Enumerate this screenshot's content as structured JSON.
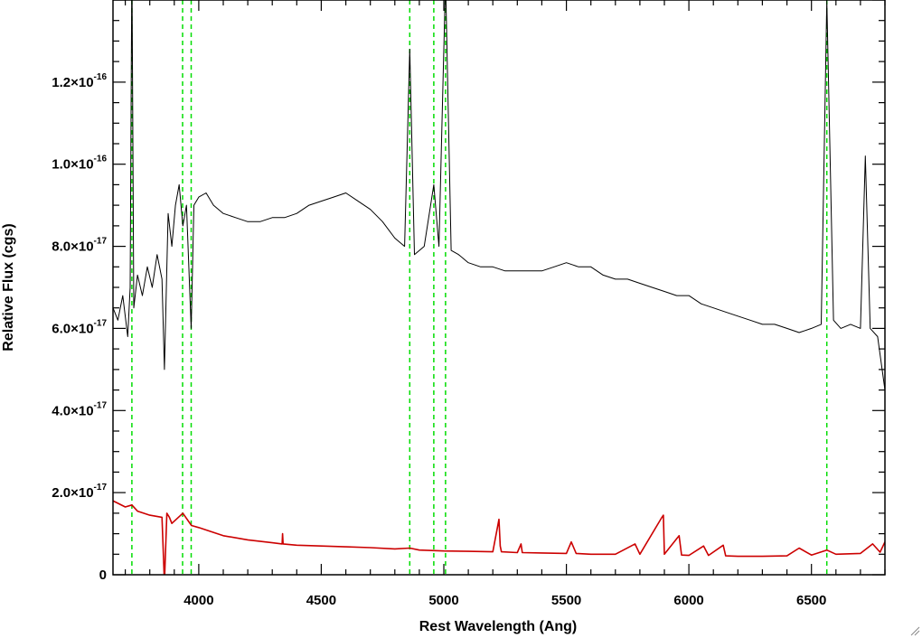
{
  "chart_data": {
    "type": "line",
    "title": "",
    "xlabel": "Rest Wavelength (Ang)",
    "ylabel": "Relative Flux (cgs)",
    "xlim": [
      3650,
      6800
    ],
    "ylim": [
      0,
      1.4e-16
    ],
    "x_ticks": [
      4000,
      4500,
      5000,
      5500,
      6000,
      6500
    ],
    "x_tick_labels": [
      "4000",
      "4500",
      "5000",
      "5500",
      "6000",
      "6500"
    ],
    "y_ticks": [
      0,
      2e-17,
      4e-17,
      6e-17,
      8e-17,
      1e-16,
      1.2e-16
    ],
    "y_tick_labels": [
      {
        "mantissa": "0",
        "exponent": ""
      },
      {
        "mantissa": "2.0×10",
        "exponent": "-17"
      },
      {
        "mantissa": "4.0×10",
        "exponent": "-17"
      },
      {
        "mantissa": "6.0×10",
        "exponent": "-17"
      },
      {
        "mantissa": "8.0×10",
        "exponent": "-17"
      },
      {
        "mantissa": "1.0×10",
        "exponent": "-16"
      },
      {
        "mantissa": "1.2×10",
        "exponent": "-16"
      }
    ],
    "grid": false,
    "line_markers": [
      3727,
      3934,
      3969,
      4861,
      4959,
      5007,
      6563
    ],
    "series": [
      {
        "color": "#000000",
        "x": [
          3650,
          3670,
          3690,
          3710,
          3720,
          3727,
          3735,
          3750,
          3770,
          3790,
          3810,
          3830,
          3850,
          3860,
          3875,
          3890,
          3905,
          3920,
          3935,
          3950,
          3969,
          3980,
          4000,
          4030,
          4060,
          4100,
          4150,
          4200,
          4250,
          4300,
          4350,
          4400,
          4450,
          4500,
          4550,
          4600,
          4650,
          4700,
          4750,
          4800,
          4840,
          4861,
          4880,
          4920,
          4959,
          4980,
          5007,
          5030,
          5060,
          5100,
          5150,
          5200,
          5250,
          5300,
          5350,
          5400,
          5450,
          5500,
          5550,
          5600,
          5650,
          5700,
          5750,
          5800,
          5850,
          5900,
          5950,
          6000,
          6050,
          6100,
          6150,
          6200,
          6250,
          6300,
          6350,
          6400,
          6450,
          6500,
          6540,
          6563,
          6590,
          6620,
          6660,
          6700,
          6720,
          6740,
          6770,
          6800
        ],
        "values": [
          6.5e-17,
          6.2e-17,
          6.8e-17,
          5.8e-17,
          7e-17,
          1.5e-16,
          6.5e-17,
          7.3e-17,
          6.8e-17,
          7.5e-17,
          7e-17,
          7.8e-17,
          7.2e-17,
          5e-17,
          8.8e-17,
          8e-17,
          9e-17,
          9.5e-17,
          8.5e-17,
          9e-17,
          6e-17,
          9e-17,
          9.2e-17,
          9.3e-17,
          9e-17,
          8.8e-17,
          8.7e-17,
          8.6e-17,
          8.6e-17,
          8.7e-17,
          8.7e-17,
          8.8e-17,
          9e-17,
          9.1e-17,
          9.2e-17,
          9.3e-17,
          9.1e-17,
          8.9e-17,
          8.6e-17,
          8.2e-17,
          8e-17,
          1.28e-16,
          7.8e-17,
          8e-17,
          9.5e-17,
          8e-17,
          1.45e-16,
          7.9e-17,
          7.8e-17,
          7.6e-17,
          7.5e-17,
          7.5e-17,
          7.4e-17,
          7.4e-17,
          7.4e-17,
          7.4e-17,
          7.5e-17,
          7.6e-17,
          7.5e-17,
          7.5e-17,
          7.3e-17,
          7.2e-17,
          7.2e-17,
          7.1e-17,
          7e-17,
          6.9e-17,
          6.8e-17,
          6.8e-17,
          6.6e-17,
          6.5e-17,
          6.4e-17,
          6.3e-17,
          6.2e-17,
          6.1e-17,
          6.1e-17,
          6e-17,
          5.9e-17,
          6e-17,
          6.1e-17,
          1.4e-16,
          6.2e-17,
          6e-17,
          6.1e-17,
          6e-17,
          1.02e-16,
          6e-17,
          5.8e-17,
          4.5e-17
        ]
      },
      {
        "color": "#cc0000",
        "x": [
          3650,
          3700,
          3727,
          3750,
          3800,
          3850,
          3860,
          3870,
          3880,
          3890,
          3935,
          3970,
          4000,
          4050,
          4100,
          4200,
          4300,
          4340,
          4342,
          4344,
          4400,
          4500,
          4600,
          4700,
          4800,
          4861,
          4900,
          5000,
          5100,
          5200,
          5225,
          5230,
          5235,
          5300,
          5315,
          5320,
          5400,
          5500,
          5520,
          5540,
          5600,
          5700,
          5780,
          5800,
          5890,
          5896,
          5900,
          5960,
          5970,
          6000,
          6060,
          6080,
          6140,
          6150,
          6200,
          6300,
          6400,
          6450,
          6500,
          6563,
          6600,
          6700,
          6750,
          6780,
          6800
        ],
        "values": [
          1.8e-17,
          1.65e-17,
          1.7e-17,
          1.55e-17,
          1.45e-17,
          1.4e-17,
          -2e-18,
          1.5e-17,
          1.4e-17,
          1.25e-17,
          1.5e-17,
          1.2e-17,
          1.15e-17,
          1.05e-17,
          9.5e-18,
          8.5e-18,
          7.8e-18,
          7.5e-18,
          1e-17,
          7.5e-18,
          7.2e-18,
          7e-18,
          6.8e-18,
          6.6e-18,
          6.3e-18,
          6.5e-18,
          6e-18,
          5.8e-18,
          5.7e-18,
          5.6e-18,
          1.35e-17,
          7e-18,
          5.6e-18,
          5.4e-18,
          7.5e-18,
          5.4e-18,
          5.3e-18,
          5.2e-18,
          8e-18,
          5.2e-18,
          5e-18,
          5e-18,
          7.5e-18,
          5e-18,
          1.4e-17,
          1.45e-17,
          5e-18,
          9.5e-18,
          4.8e-18,
          4.7e-18,
          7e-18,
          4.7e-18,
          7.2e-18,
          4.6e-18,
          4.5e-18,
          4.5e-18,
          4.6e-18,
          6.5e-18,
          4.8e-18,
          6e-18,
          5e-18,
          5.2e-18,
          7.5e-18,
          5.5e-18,
          8e-18
        ]
      }
    ]
  }
}
